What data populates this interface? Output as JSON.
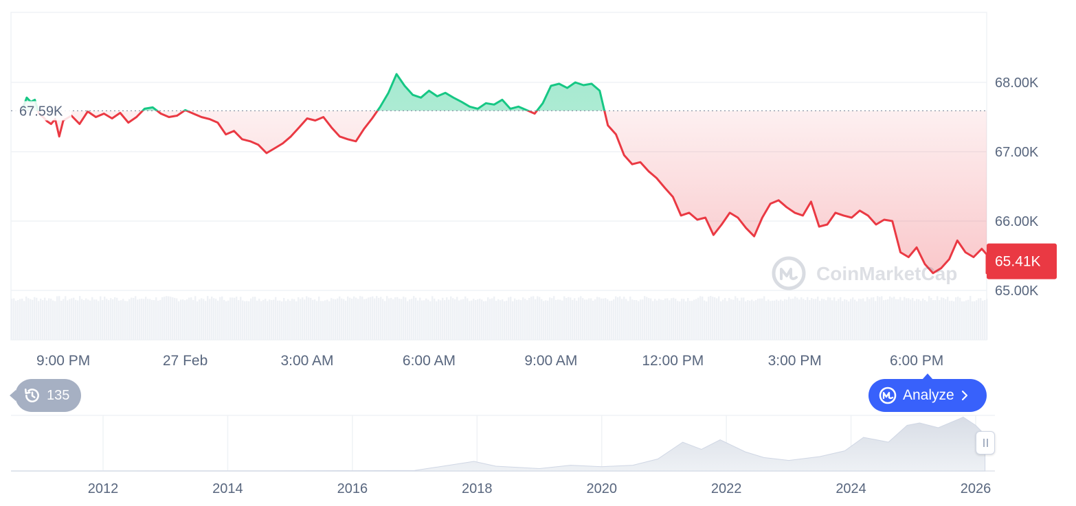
{
  "chart_data": {
    "type": "area",
    "baseline": 67.59,
    "baseline_label": "67.59K",
    "current_label": "65.41K",
    "ylim": [
      65.0,
      68.0
    ],
    "y_ticks": [
      "68.00K",
      "67.00K",
      "66.00K",
      "65.00K"
    ],
    "x_ticks": [
      "9:00 PM",
      "27 Feb",
      "3:00 AM",
      "6:00 AM",
      "9:00 AM",
      "12:00 PM",
      "3:00 PM",
      "6:00 PM"
    ],
    "x_tick_hours": [
      -3,
      0,
      3,
      6,
      9,
      12,
      15,
      18
    ],
    "x_range_hours": [
      -4,
      20
    ],
    "series": [
      {
        "values": [
          [
            -4.0,
            67.62
          ],
          [
            -3.9,
            67.78
          ],
          [
            -3.8,
            67.72
          ],
          [
            -3.7,
            67.75
          ],
          [
            -3.6,
            67.55
          ],
          [
            -3.5,
            67.5
          ],
          [
            -3.4,
            67.44
          ],
          [
            -3.3,
            67.4
          ],
          [
            -3.2,
            67.47
          ],
          [
            -3.1,
            67.22
          ],
          [
            -3.0,
            67.45
          ],
          [
            -2.8,
            67.52
          ],
          [
            -2.6,
            67.4
          ],
          [
            -2.4,
            67.58
          ],
          [
            -2.2,
            67.5
          ],
          [
            -2.0,
            67.55
          ],
          [
            -1.8,
            67.48
          ],
          [
            -1.6,
            67.56
          ],
          [
            -1.4,
            67.42
          ],
          [
            -1.2,
            67.5
          ],
          [
            -1.0,
            67.62
          ],
          [
            -0.8,
            67.64
          ],
          [
            -0.6,
            67.55
          ],
          [
            -0.4,
            67.5
          ],
          [
            -0.2,
            67.52
          ],
          [
            0.0,
            67.6
          ],
          [
            0.2,
            67.55
          ],
          [
            0.4,
            67.5
          ],
          [
            0.6,
            67.47
          ],
          [
            0.8,
            67.42
          ],
          [
            1.0,
            67.25
          ],
          [
            1.2,
            67.3
          ],
          [
            1.4,
            67.18
          ],
          [
            1.6,
            67.15
          ],
          [
            1.8,
            67.1
          ],
          [
            2.0,
            66.98
          ],
          [
            2.2,
            67.05
          ],
          [
            2.4,
            67.12
          ],
          [
            2.6,
            67.22
          ],
          [
            2.8,
            67.35
          ],
          [
            3.0,
            67.48
          ],
          [
            3.2,
            67.45
          ],
          [
            3.4,
            67.5
          ],
          [
            3.6,
            67.35
          ],
          [
            3.8,
            67.22
          ],
          [
            4.0,
            67.18
          ],
          [
            4.2,
            67.15
          ],
          [
            4.4,
            67.33
          ],
          [
            4.6,
            67.48
          ],
          [
            4.8,
            67.65
          ],
          [
            5.0,
            67.85
          ],
          [
            5.2,
            68.12
          ],
          [
            5.4,
            67.95
          ],
          [
            5.6,
            67.82
          ],
          [
            5.8,
            67.78
          ],
          [
            6.0,
            67.88
          ],
          [
            6.2,
            67.8
          ],
          [
            6.4,
            67.85
          ],
          [
            6.6,
            67.78
          ],
          [
            6.8,
            67.72
          ],
          [
            7.0,
            67.65
          ],
          [
            7.2,
            67.62
          ],
          [
            7.4,
            67.7
          ],
          [
            7.6,
            67.68
          ],
          [
            7.8,
            67.75
          ],
          [
            8.0,
            67.62
          ],
          [
            8.2,
            67.65
          ],
          [
            8.4,
            67.6
          ],
          [
            8.6,
            67.55
          ],
          [
            8.8,
            67.7
          ],
          [
            9.0,
            67.95
          ],
          [
            9.2,
            67.98
          ],
          [
            9.4,
            67.92
          ],
          [
            9.6,
            68.0
          ],
          [
            9.8,
            67.96
          ],
          [
            10.0,
            67.98
          ],
          [
            10.2,
            67.88
          ],
          [
            10.4,
            67.38
          ],
          [
            10.6,
            67.25
          ],
          [
            10.8,
            66.95
          ],
          [
            11.0,
            66.82
          ],
          [
            11.2,
            66.85
          ],
          [
            11.4,
            66.72
          ],
          [
            11.6,
            66.62
          ],
          [
            11.8,
            66.48
          ],
          [
            12.0,
            66.35
          ],
          [
            12.2,
            66.08
          ],
          [
            12.4,
            66.12
          ],
          [
            12.6,
            66.02
          ],
          [
            12.8,
            66.05
          ],
          [
            13.0,
            65.8
          ],
          [
            13.2,
            65.95
          ],
          [
            13.4,
            66.12
          ],
          [
            13.6,
            66.05
          ],
          [
            13.8,
            65.9
          ],
          [
            14.0,
            65.78
          ],
          [
            14.2,
            66.05
          ],
          [
            14.4,
            66.25
          ],
          [
            14.6,
            66.3
          ],
          [
            14.8,
            66.2
          ],
          [
            15.0,
            66.12
          ],
          [
            15.2,
            66.08
          ],
          [
            15.4,
            66.28
          ],
          [
            15.6,
            65.92
          ],
          [
            15.8,
            65.95
          ],
          [
            16.0,
            66.12
          ],
          [
            16.2,
            66.08
          ],
          [
            16.4,
            66.05
          ],
          [
            16.6,
            66.15
          ],
          [
            16.8,
            66.08
          ],
          [
            17.0,
            65.95
          ],
          [
            17.2,
            66.02
          ],
          [
            17.4,
            66.0
          ],
          [
            17.6,
            65.55
          ],
          [
            17.8,
            65.48
          ],
          [
            18.0,
            65.62
          ],
          [
            18.2,
            65.38
          ],
          [
            18.4,
            65.25
          ],
          [
            18.6,
            65.32
          ],
          [
            18.8,
            65.45
          ],
          [
            19.0,
            65.72
          ],
          [
            19.2,
            65.55
          ],
          [
            19.4,
            65.48
          ],
          [
            19.6,
            65.6
          ],
          [
            19.8,
            65.52
          ],
          [
            20.0,
            65.32
          ],
          [
            20.2,
            65.25
          ],
          [
            20.4,
            65.38
          ],
          [
            20.6,
            65.4
          ],
          [
            20.8,
            65.3
          ],
          [
            21.0,
            65.42
          ]
        ]
      }
    ],
    "navigator": {
      "x_ticks": [
        "2012",
        "2014",
        "2016",
        "2018",
        "2020",
        "2022",
        "2024",
        "2026"
      ],
      "x_tick_years": [
        2012,
        2014,
        2016,
        2018,
        2020,
        2022,
        2024,
        2026
      ],
      "x_range_years": [
        2010.5,
        2026.2
      ],
      "values": [
        [
          2010.5,
          0
        ],
        [
          2013.0,
          0.001
        ],
        [
          2015.0,
          0.003
        ],
        [
          2017.0,
          0.01
        ],
        [
          2017.95,
          0.2
        ],
        [
          2018.3,
          0.1
        ],
        [
          2019.0,
          0.05
        ],
        [
          2019.5,
          0.12
        ],
        [
          2020.0,
          0.09
        ],
        [
          2020.5,
          0.12
        ],
        [
          2020.9,
          0.25
        ],
        [
          2021.3,
          0.6
        ],
        [
          2021.6,
          0.45
        ],
        [
          2021.9,
          0.65
        ],
        [
          2022.3,
          0.4
        ],
        [
          2022.6,
          0.28
        ],
        [
          2023.0,
          0.22
        ],
        [
          2023.5,
          0.3
        ],
        [
          2023.9,
          0.42
        ],
        [
          2024.2,
          0.7
        ],
        [
          2024.6,
          0.6
        ],
        [
          2024.9,
          0.95
        ],
        [
          2025.1,
          1.0
        ],
        [
          2025.4,
          0.9
        ],
        [
          2025.8,
          1.12
        ],
        [
          2026.0,
          0.95
        ],
        [
          2026.15,
          0.75
        ]
      ]
    },
    "grid": true,
    "colors": {
      "up": "#16c784",
      "down": "#ea3943",
      "axis_text": "#58667e",
      "grid": "#eff2f5",
      "label_bg": "#ea3943"
    }
  },
  "watermark": "CoinMarketCap",
  "history": {
    "count": "135",
    "icon": "history-icon"
  },
  "analyze": {
    "label": "Analyze",
    "icon": "coinmarketcap-icon"
  }
}
